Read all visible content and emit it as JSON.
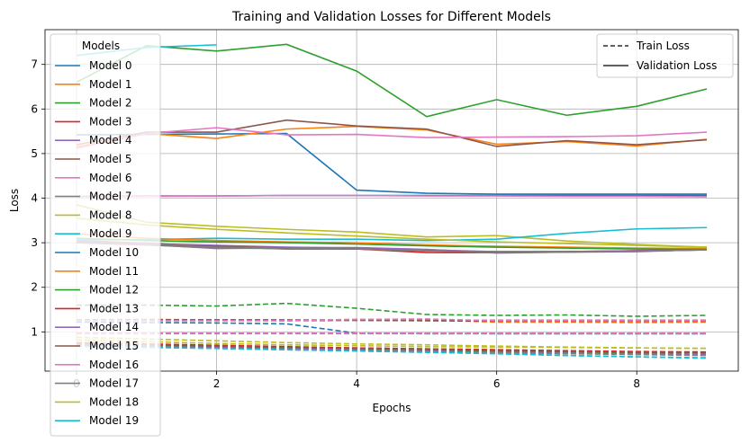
{
  "chart_data": {
    "type": "line",
    "title": "Training and Validation Losses for Different Models",
    "xlabel": "Epochs",
    "ylabel": "Loss",
    "xlim": [
      -0.45,
      9.45
    ],
    "ylim": [
      0.12,
      7.78
    ],
    "xticks": [
      0,
      2,
      4,
      6,
      8
    ],
    "yticks": [
      1,
      2,
      3,
      4,
      5,
      6,
      7
    ],
    "grid": true,
    "legend_models_title": "Models",
    "legend_models_placement": "top-left",
    "legend_style_placement": "top-right",
    "style_legend": [
      {
        "label": "Train Loss",
        "dash": "dashed"
      },
      {
        "label": "Validation Loss",
        "dash": "solid"
      }
    ],
    "series": [
      {
        "name": "Model 0",
        "color": "#1f77b4",
        "val": [
          5.42,
          5.43,
          5.44,
          5.45,
          4.18,
          4.11,
          4.09,
          4.09,
          4.09,
          4.09
        ],
        "train": [
          1.22,
          1.21,
          1.2,
          1.18,
          0.97,
          0.96,
          0.96,
          0.96,
          0.96,
          0.96
        ]
      },
      {
        "name": "Model 1",
        "color": "#ff7f0e",
        "val": [
          5.15,
          5.45,
          5.34,
          5.55,
          5.61,
          5.53,
          5.21,
          5.27,
          5.17,
          5.32
        ],
        "train": [
          1.27,
          1.28,
          1.27,
          1.26,
          1.28,
          1.27,
          1.22,
          1.22,
          1.21,
          1.22
        ]
      },
      {
        "name": "Model 2",
        "color": "#2ca02c",
        "val": [
          6.6,
          7.42,
          7.3,
          7.45,
          6.85,
          5.83,
          6.21,
          5.86,
          6.06,
          6.45
        ],
        "train": [
          1.6,
          1.6,
          1.58,
          1.64,
          1.53,
          1.39,
          1.37,
          1.38,
          1.35,
          1.37
        ]
      },
      {
        "name": "Model 3",
        "color": "#d62728",
        "val": [
          3.05,
          2.99,
          2.91,
          2.86,
          2.86,
          2.78,
          2.78,
          2.79,
          2.82,
          2.85
        ],
        "train": [
          1.27,
          1.27,
          1.26,
          1.25,
          1.26,
          1.25,
          1.24,
          1.24,
          1.24,
          1.24
        ]
      },
      {
        "name": "Model 4",
        "color": "#9467bd",
        "val": [
          3.0,
          2.96,
          2.87,
          2.89,
          2.89,
          2.85,
          2.77,
          2.79,
          2.8,
          2.85
        ],
        "train": [
          0.97,
          0.97,
          0.97,
          0.97,
          0.97,
          0.97,
          0.96,
          0.96,
          0.96,
          0.96
        ]
      },
      {
        "name": "Model 5",
        "color": "#8c564b",
        "val": [
          5.2,
          5.48,
          5.48,
          5.75,
          5.62,
          5.55,
          5.16,
          5.29,
          5.2,
          5.31
        ],
        "train": [
          1.27,
          1.27,
          1.27,
          1.27,
          1.26,
          1.26,
          1.26,
          1.26,
          1.26,
          1.26
        ]
      },
      {
        "name": "Model 6",
        "color": "#e377c2",
        "val": [
          5.12,
          5.45,
          5.58,
          5.42,
          5.43,
          5.36,
          5.37,
          5.38,
          5.4,
          5.48
        ],
        "train": [
          1.25,
          1.25,
          1.25,
          1.25,
          1.28,
          1.29,
          1.25,
          1.25,
          1.25,
          1.25
        ]
      },
      {
        "name": "Model 7",
        "color": "#7f7f7f",
        "val": [
          3.05,
          2.95,
          2.88,
          2.87,
          2.86,
          2.83,
          2.79,
          2.8,
          2.81,
          2.84
        ],
        "train": [
          0.96,
          0.96,
          0.96,
          0.96,
          0.96,
          0.96,
          0.96,
          0.96,
          0.96,
          0.96
        ]
      },
      {
        "name": "Model 8",
        "color": "#bcbd22",
        "val": [
          3.85,
          3.46,
          3.37,
          3.3,
          3.24,
          3.13,
          3.16,
          3.04,
          2.96,
          2.9
        ],
        "train": [
          0.82,
          0.78,
          0.74,
          0.71,
          0.69,
          0.67,
          0.66,
          0.65,
          0.64,
          0.63
        ]
      },
      {
        "name": "Model 9",
        "color": "#17becf",
        "val": [
          3.07,
          3.07,
          3.1,
          3.08,
          3.08,
          3.05,
          3.08,
          3.21,
          3.31,
          3.34
        ],
        "train": [
          0.7,
          0.66,
          0.63,
          0.6,
          0.58,
          0.55,
          0.51,
          0.47,
          0.44,
          0.42
        ]
      },
      {
        "name": "Model 10",
        "color": "#1f77b4",
        "val": [
          4.04,
          4.05,
          4.05,
          4.06,
          4.06,
          4.06,
          4.06,
          4.06,
          4.06,
          4.06
        ],
        "train": [
          0.72,
          0.69,
          0.66,
          0.63,
          0.6,
          0.58,
          0.55,
          0.52,
          0.5,
          0.48
        ]
      },
      {
        "name": "Model 11",
        "color": "#ff7f0e",
        "val": [
          3.2,
          3.1,
          3.05,
          3.02,
          3.0,
          2.95,
          2.92,
          2.9,
          2.88,
          2.87
        ],
        "train": [
          0.75,
          0.72,
          0.69,
          0.66,
          0.64,
          0.62,
          0.6,
          0.57,
          0.55,
          0.54
        ]
      },
      {
        "name": "Model 12",
        "color": "#2ca02c",
        "val": [
          3.1,
          3.05,
          3.02,
          3.0,
          2.97,
          2.93,
          2.9,
          2.88,
          2.86,
          2.85
        ],
        "train": [
          0.73,
          0.7,
          0.67,
          0.64,
          0.62,
          0.6,
          0.57,
          0.55,
          0.53,
          0.52
        ]
      },
      {
        "name": "Model 13",
        "color": "#d62728",
        "val": [
          3.0,
          2.95,
          2.92,
          2.88,
          2.86,
          2.82,
          2.8,
          2.8,
          2.82,
          2.84
        ],
        "train": [
          0.76,
          0.73,
          0.7,
          0.67,
          0.64,
          0.62,
          0.6,
          0.58,
          0.56,
          0.55
        ]
      },
      {
        "name": "Model 14",
        "color": "#9467bd",
        "val": [
          3.05,
          2.98,
          2.94,
          2.9,
          2.88,
          2.84,
          2.8,
          2.8,
          2.82,
          2.84
        ],
        "train": [
          0.71,
          0.68,
          0.65,
          0.62,
          0.6,
          0.57,
          0.54,
          0.52,
          0.5,
          0.49
        ]
      },
      {
        "name": "Model 15",
        "color": "#8c564b",
        "val": [
          3.02,
          2.96,
          2.92,
          2.88,
          2.86,
          2.82,
          2.79,
          2.8,
          2.81,
          2.84
        ],
        "train": [
          0.74,
          0.71,
          0.68,
          0.65,
          0.63,
          0.61,
          0.58,
          0.56,
          0.54,
          0.53
        ]
      },
      {
        "name": "Model 16",
        "color": "#e377c2",
        "val": [
          4.03,
          4.04,
          4.05,
          4.06,
          4.06,
          4.05,
          4.05,
          4.04,
          4.04,
          4.03
        ],
        "train": [
          0.97,
          0.97,
          0.97,
          0.97,
          0.97,
          0.97,
          0.97,
          0.97,
          0.97,
          0.97
        ]
      },
      {
        "name": "Model 17",
        "color": "#7f7f7f",
        "val": [
          3.0,
          2.96,
          2.9,
          2.88,
          2.86,
          2.82,
          2.8,
          2.8,
          2.81,
          2.84
        ],
        "train": [
          0.69,
          0.66,
          0.63,
          0.6,
          0.58,
          0.56,
          0.53,
          0.51,
          0.49,
          0.47
        ]
      },
      {
        "name": "Model 18",
        "color": "#bcbd22",
        "val": [
          3.55,
          3.4,
          3.3,
          3.22,
          3.15,
          3.08,
          3.02,
          2.98,
          2.94,
          2.9
        ],
        "train": [
          0.88,
          0.84,
          0.8,
          0.76,
          0.73,
          0.71,
          0.68,
          0.66,
          0.64,
          0.63
        ]
      },
      {
        "name": "Model 19",
        "color": "#17becf",
        "val": [
          7.2,
          7.38,
          7.44
        ],
        "train": [
          0.68,
          0.65,
          0.63,
          0.6,
          0.57,
          0.54,
          0.51,
          0.47,
          0.44,
          0.41
        ]
      }
    ]
  }
}
